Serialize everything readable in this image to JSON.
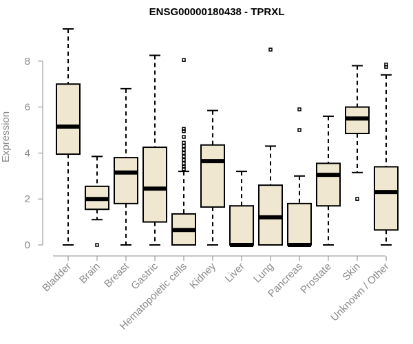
{
  "chart_data": {
    "type": "boxplot",
    "title": "ENSG00000180438 - TPRXL",
    "xlabel": "",
    "ylabel": "Expression",
    "ylim": [
      0,
      9.6
    ],
    "yticks": [
      0,
      2,
      4,
      6,
      8
    ],
    "box_color": "#efe7cf",
    "line_color": "#000000",
    "axis_color": "#8a8a8a",
    "categories": [
      "Bladder",
      "Brain",
      "Breast",
      "Gastric",
      "Hematopoietic cells",
      "Kidney",
      "Liver",
      "Lung",
      "Pancreas",
      "Prostate",
      "Skin",
      "Unknown / Other"
    ],
    "series": [
      {
        "name": "Bladder",
        "min": 0.0,
        "q1": 3.95,
        "median": 5.15,
        "q3": 7.0,
        "max": 9.4,
        "outliers": []
      },
      {
        "name": "Brain",
        "min": 1.1,
        "q1": 1.55,
        "median": 2.0,
        "q3": 2.55,
        "max": 3.85,
        "outliers": [
          0.0
        ]
      },
      {
        "name": "Breast",
        "min": 0.0,
        "q1": 1.8,
        "median": 3.15,
        "q3": 3.8,
        "max": 6.8,
        "outliers": []
      },
      {
        "name": "Gastric",
        "min": 0.0,
        "q1": 1.0,
        "median": 2.45,
        "q3": 4.25,
        "max": 8.25,
        "outliers": []
      },
      {
        "name": "Hematopoietic cells",
        "min": 0.0,
        "q1": 0.0,
        "median": 0.65,
        "q3": 1.35,
        "max": 3.2,
        "outliers": [
          8.05,
          5.05,
          4.95,
          4.7,
          4.45,
          4.3,
          4.15,
          4.0,
          3.85,
          3.7,
          3.55,
          3.4,
          3.3
        ]
      },
      {
        "name": "Kidney",
        "min": 0.0,
        "q1": 1.65,
        "median": 3.65,
        "q3": 4.35,
        "max": 5.85,
        "outliers": []
      },
      {
        "name": "Liver",
        "min": 0.0,
        "q1": 0.0,
        "median": 0.0,
        "q3": 1.7,
        "max": 3.2,
        "outliers": []
      },
      {
        "name": "Lung",
        "min": 0.0,
        "q1": 0.0,
        "median": 1.2,
        "q3": 2.6,
        "max": 4.3,
        "outliers": [
          8.5
        ]
      },
      {
        "name": "Pancreas",
        "min": 0.0,
        "q1": 0.0,
        "median": 0.0,
        "q3": 1.8,
        "max": 3.0,
        "outliers": [
          5.9,
          5.0
        ]
      },
      {
        "name": "Prostate",
        "min": 0.0,
        "q1": 1.7,
        "median": 3.05,
        "q3": 3.55,
        "max": 5.6,
        "outliers": []
      },
      {
        "name": "Skin",
        "min": 3.15,
        "q1": 4.85,
        "median": 5.5,
        "q3": 6.0,
        "max": 7.8,
        "outliers": [
          2.0
        ]
      },
      {
        "name": "Unknown / Other",
        "min": 0.0,
        "q1": 0.65,
        "median": 2.3,
        "q3": 3.4,
        "max": 7.4,
        "outliers": [
          7.85,
          7.75
        ]
      }
    ]
  }
}
